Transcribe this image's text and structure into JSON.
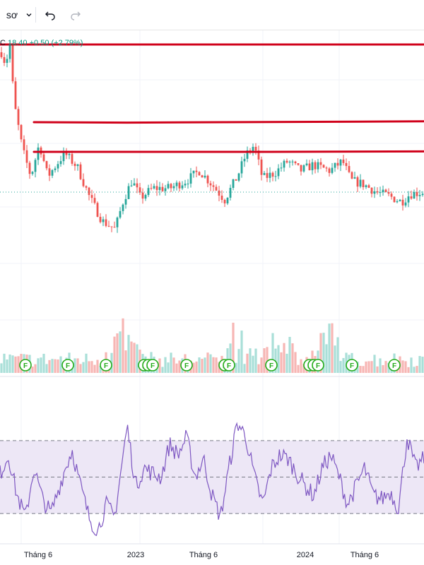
{
  "toolbar": {
    "interval_label": "sơ",
    "caret_icon": "chevron-down-icon",
    "undo_icon": "undo-icon",
    "redo_icon": "redo-icon"
  },
  "legend": {
    "symbol_fragment": "C",
    "price": "18.40",
    "change": "+0.50 (+2.79%)"
  },
  "colors": {
    "up": "#26a69a",
    "down": "#ef5350",
    "trendline": "#d0021b",
    "rsi_line": "#7e57c2",
    "rsi_band": "#ede7f6",
    "dividend": "#22ab18"
  },
  "x_axis": {
    "labels": [
      "Tháng 6",
      "2023",
      "Tháng 6",
      "2024",
      "Tháng 6"
    ]
  },
  "dividend_marker_label": "F",
  "chart_data": {
    "type": "candlestick",
    "panes": [
      "price",
      "volume",
      "rsi"
    ],
    "legend_text": "C 18.40 +0.50 (+2.79%)",
    "x_tick_labels": [
      "Tháng 6",
      "2023",
      "Tháng 6",
      "2024",
      "Tháng 6"
    ],
    "price_shape": [
      [
        0.0,
        0.96
      ],
      [
        0.01,
        0.9
      ],
      [
        0.02,
        1.0
      ],
      [
        0.03,
        0.7
      ],
      [
        0.05,
        0.46
      ],
      [
        0.07,
        0.32
      ],
      [
        0.09,
        0.49
      ],
      [
        0.11,
        0.32
      ],
      [
        0.13,
        0.38
      ],
      [
        0.15,
        0.44
      ],
      [
        0.18,
        0.37
      ],
      [
        0.21,
        0.21
      ],
      [
        0.24,
        0.09
      ],
      [
        0.27,
        0.05
      ],
      [
        0.29,
        0.2
      ],
      [
        0.31,
        0.3
      ],
      [
        0.33,
        0.21
      ],
      [
        0.36,
        0.26
      ],
      [
        0.4,
        0.26
      ],
      [
        0.44,
        0.3
      ],
      [
        0.47,
        0.35
      ],
      [
        0.5,
        0.28
      ],
      [
        0.53,
        0.2
      ],
      [
        0.56,
        0.32
      ],
      [
        0.58,
        0.43
      ],
      [
        0.6,
        0.48
      ],
      [
        0.62,
        0.31
      ],
      [
        0.65,
        0.34
      ],
      [
        0.68,
        0.4
      ],
      [
        0.71,
        0.35
      ],
      [
        0.74,
        0.38
      ],
      [
        0.78,
        0.35
      ],
      [
        0.81,
        0.4
      ],
      [
        0.83,
        0.3
      ],
      [
        0.86,
        0.28
      ],
      [
        0.89,
        0.24
      ],
      [
        0.92,
        0.22
      ],
      [
        0.95,
        0.19
      ],
      [
        0.97,
        0.23
      ],
      [
        1.0,
        0.24
      ]
    ],
    "horizontal_levels": [
      {
        "name": "resistance-1",
        "shape": [
          [
            0.0,
            1.0
          ],
          [
            1.0,
            1.0
          ]
        ]
      },
      {
        "name": "resistance-2",
        "shape": [
          [
            0.08,
            0.63
          ],
          [
            0.3,
            0.62
          ],
          [
            1.0,
            0.65
          ]
        ]
      },
      {
        "name": "resistance-3",
        "shape": [
          [
            0.08,
            0.52
          ],
          [
            0.6,
            0.52
          ],
          [
            1.0,
            0.53
          ]
        ]
      }
    ],
    "volume_spikes": [
      0.29,
      0.56,
      0.66,
      0.78
    ],
    "dividend_markers": [
      0.06,
      0.16,
      0.25,
      0.34,
      0.35,
      0.36,
      0.44,
      0.53,
      0.54,
      0.64,
      0.73,
      0.74,
      0.75,
      0.83,
      0.93
    ],
    "rsi_levels": [
      70,
      50,
      30
    ],
    "rsi_shape": [
      [
        0.0,
        52
      ],
      [
        0.02,
        62
      ],
      [
        0.04,
        40
      ],
      [
        0.06,
        28
      ],
      [
        0.08,
        55
      ],
      [
        0.1,
        38
      ],
      [
        0.12,
        30
      ],
      [
        0.15,
        52
      ],
      [
        0.17,
        65
      ],
      [
        0.19,
        45
      ],
      [
        0.21,
        28
      ],
      [
        0.23,
        20
      ],
      [
        0.25,
        35
      ],
      [
        0.27,
        28
      ],
      [
        0.3,
        78
      ],
      [
        0.32,
        45
      ],
      [
        0.34,
        55
      ],
      [
        0.36,
        52
      ],
      [
        0.38,
        50
      ],
      [
        0.4,
        68
      ],
      [
        0.42,
        62
      ],
      [
        0.44,
        72
      ],
      [
        0.46,
        50
      ],
      [
        0.48,
        60
      ],
      [
        0.5,
        40
      ],
      [
        0.52,
        28
      ],
      [
        0.54,
        55
      ],
      [
        0.56,
        80
      ],
      [
        0.58,
        72
      ],
      [
        0.6,
        50
      ],
      [
        0.62,
        35
      ],
      [
        0.64,
        55
      ],
      [
        0.66,
        62
      ],
      [
        0.68,
        60
      ],
      [
        0.7,
        52
      ],
      [
        0.72,
        45
      ],
      [
        0.74,
        40
      ],
      [
        0.76,
        55
      ],
      [
        0.78,
        62
      ],
      [
        0.8,
        50
      ],
      [
        0.82,
        35
      ],
      [
        0.84,
        45
      ],
      [
        0.86,
        55
      ],
      [
        0.88,
        40
      ],
      [
        0.9,
        38
      ],
      [
        0.92,
        42
      ],
      [
        0.94,
        33
      ],
      [
        0.96,
        72
      ],
      [
        0.98,
        55
      ],
      [
        1.0,
        60
      ]
    ]
  }
}
